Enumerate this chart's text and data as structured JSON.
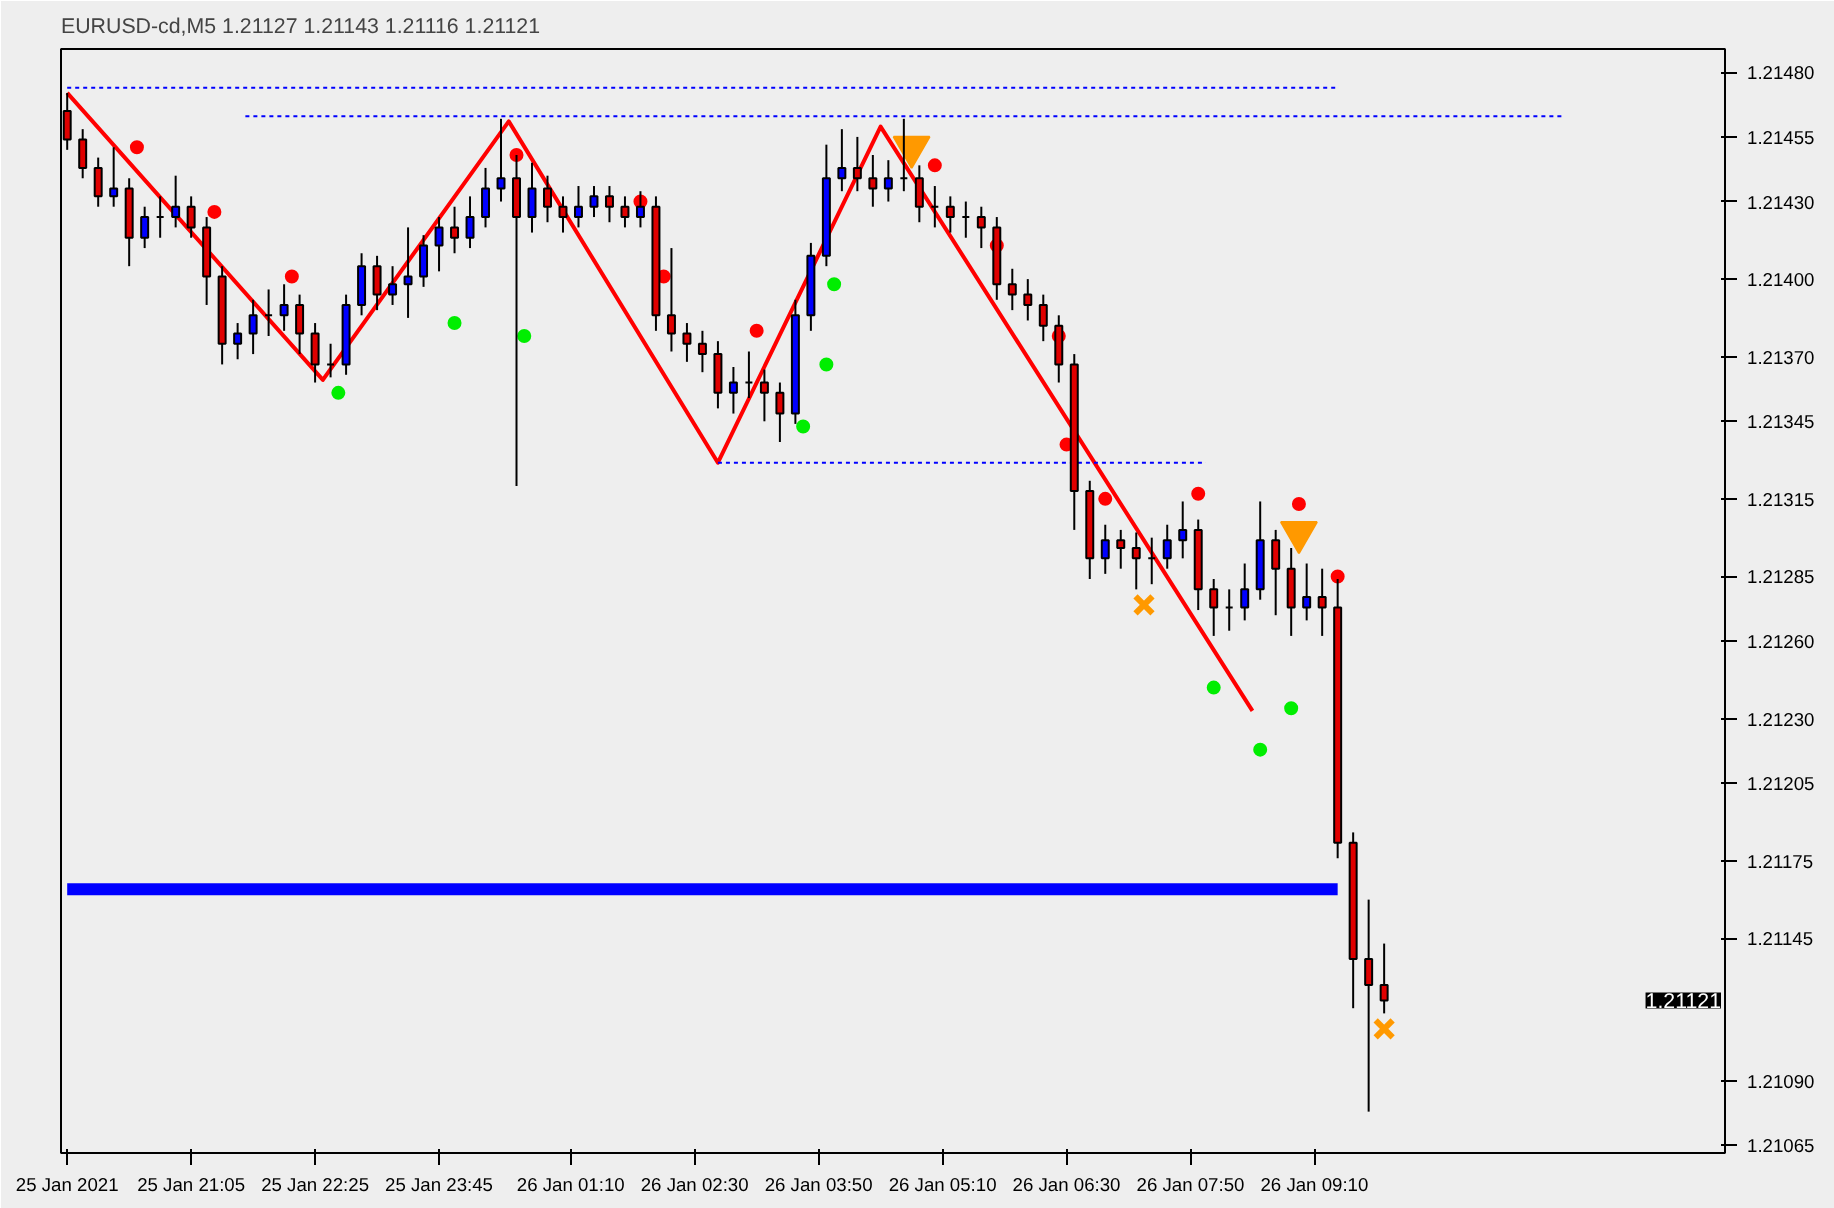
{
  "chart_data": {
    "type": "candlestick",
    "title": "EURUSD-cd,M5  1.21127 1.21143 1.21116 1.21121",
    "x": [
      "2021-01-25T19:45",
      "2021-01-25T19:55",
      "2021-01-25T20:05",
      "2021-01-25T20:15",
      "2021-01-25T20:25",
      "2021-01-25T20:35",
      "2021-01-25T20:45",
      "2021-01-25T20:55",
      "2021-01-25T21:05",
      "2021-01-25T21:15",
      "2021-01-25T21:25",
      "2021-01-25T21:35",
      "2021-01-25T21:45",
      "2021-01-25T21:55",
      "2021-01-25T22:05",
      "2021-01-25T22:15",
      "2021-01-25T22:25",
      "2021-01-25T22:35",
      "2021-01-25T22:45",
      "2021-01-25T22:55",
      "2021-01-25T23:05",
      "2021-01-25T23:15",
      "2021-01-25T23:25",
      "2021-01-25T23:35",
      "2021-01-25T23:45",
      "2021-01-25T23:55",
      "2021-01-26T00:05",
      "2021-01-26T00:15",
      "2021-01-26T00:25",
      "2021-01-26T00:35",
      "2021-01-26T00:45",
      "2021-01-26T00:55",
      "2021-01-26T01:05",
      "2021-01-26T01:15",
      "2021-01-26T01:25",
      "2021-01-26T01:35",
      "2021-01-26T01:45",
      "2021-01-26T01:55",
      "2021-01-26T02:05",
      "2021-01-26T02:15",
      "2021-01-26T02:25",
      "2021-01-26T02:35",
      "2021-01-26T02:45",
      "2021-01-26T02:55",
      "2021-01-26T03:05",
      "2021-01-26T03:15",
      "2021-01-26T03:25",
      "2021-01-26T03:35",
      "2021-01-26T03:45",
      "2021-01-26T03:55",
      "2021-01-26T04:05",
      "2021-01-26T04:15",
      "2021-01-26T04:25",
      "2021-01-26T04:35",
      "2021-01-26T04:45",
      "2021-01-26T04:55",
      "2021-01-26T05:05",
      "2021-01-26T05:15",
      "2021-01-26T05:25",
      "2021-01-26T05:35",
      "2021-01-26T05:45",
      "2021-01-26T05:55",
      "2021-01-26T06:05",
      "2021-01-26T06:15",
      "2021-01-26T06:25",
      "2021-01-26T06:35",
      "2021-01-26T06:45",
      "2021-01-26T06:55",
      "2021-01-26T07:05",
      "2021-01-26T07:15",
      "2021-01-26T07:25",
      "2021-01-26T07:35",
      "2021-01-26T07:45",
      "2021-01-26T07:55",
      "2021-01-26T08:05",
      "2021-01-26T08:15",
      "2021-01-26T08:25",
      "2021-01-26T08:35",
      "2021-01-26T08:45",
      "2021-01-26T08:55",
      "2021-01-26T09:05",
      "2021-01-26T09:15",
      "2021-01-26T09:25",
      "2021-01-26T09:35",
      "2021-01-26T09:45",
      "2021-01-26T09:55"
    ],
    "ohlc": [
      [
        1.21465,
        1.21472,
        1.2145,
        1.21454
      ],
      [
        1.21454,
        1.21458,
        1.21439,
        1.21443
      ],
      [
        1.21443,
        1.21447,
        1.21428,
        1.21432
      ],
      [
        1.21432,
        1.21451,
        1.21428,
        1.21435
      ],
      [
        1.21435,
        1.21439,
        1.21405,
        1.21416
      ],
      [
        1.21416,
        1.21428,
        1.21412,
        1.21424
      ],
      [
        1.21424,
        1.21432,
        1.21416,
        1.21424
      ],
      [
        1.21424,
        1.2144,
        1.2142,
        1.21428
      ],
      [
        1.21428,
        1.21432,
        1.21416,
        1.2142
      ],
      [
        1.2142,
        1.21424,
        1.2139,
        1.21401
      ],
      [
        1.21401,
        1.21405,
        1.21367,
        1.21375
      ],
      [
        1.21375,
        1.21383,
        1.21369,
        1.21379
      ],
      [
        1.21379,
        1.21392,
        1.21371,
        1.21386
      ],
      [
        1.21386,
        1.21396,
        1.21378,
        1.21386
      ],
      [
        1.21386,
        1.21398,
        1.2138,
        1.2139
      ],
      [
        1.2139,
        1.21394,
        1.21371,
        1.21379
      ],
      [
        1.21379,
        1.21383,
        1.2136,
        1.21367
      ],
      [
        1.21367,
        1.21375,
        1.21362,
        1.21367
      ],
      [
        1.21367,
        1.21394,
        1.21363,
        1.2139
      ],
      [
        1.2139,
        1.2141,
        1.21386,
        1.21405
      ],
      [
        1.21405,
        1.21409,
        1.21388,
        1.21394
      ],
      [
        1.21394,
        1.21405,
        1.2139,
        1.21398
      ],
      [
        1.21398,
        1.2142,
        1.21385,
        1.21401
      ],
      [
        1.21401,
        1.21417,
        1.21397,
        1.21413
      ],
      [
        1.21413,
        1.21424,
        1.21403,
        1.2142
      ],
      [
        1.2142,
        1.21428,
        1.2141,
        1.21416
      ],
      [
        1.21416,
        1.21432,
        1.21412,
        1.21424
      ],
      [
        1.21424,
        1.21443,
        1.2142,
        1.21435
      ],
      [
        1.21435,
        1.21462,
        1.2143,
        1.21439
      ],
      [
        1.21439,
        1.21448,
        1.2132,
        1.21424
      ],
      [
        1.21424,
        1.21445,
        1.21418,
        1.21435
      ],
      [
        1.21435,
        1.2144,
        1.21422,
        1.21428
      ],
      [
        1.21428,
        1.21432,
        1.21418,
        1.21424
      ],
      [
        1.21424,
        1.21436,
        1.2142,
        1.21428
      ],
      [
        1.21428,
        1.21436,
        1.21424,
        1.21432
      ],
      [
        1.21432,
        1.21436,
        1.21422,
        1.21428
      ],
      [
        1.21428,
        1.21432,
        1.2142,
        1.21424
      ],
      [
        1.21424,
        1.21434,
        1.2142,
        1.21428
      ],
      [
        1.21428,
        1.21432,
        1.2138,
        1.21386
      ],
      [
        1.21386,
        1.21412,
        1.21372,
        1.21379
      ],
      [
        1.21379,
        1.21383,
        1.21368,
        1.21375
      ],
      [
        1.21375,
        1.2138,
        1.21364,
        1.21371
      ],
      [
        1.21371,
        1.21376,
        1.2135,
        1.21356
      ],
      [
        1.21356,
        1.21366,
        1.21348,
        1.2136
      ],
      [
        1.2136,
        1.21372,
        1.21354,
        1.2136
      ],
      [
        1.2136,
        1.21365,
        1.21345,
        1.21356
      ],
      [
        1.21356,
        1.2136,
        1.21337,
        1.21348
      ],
      [
        1.21348,
        1.21392,
        1.21344,
        1.21386
      ],
      [
        1.21386,
        1.21414,
        1.2138,
        1.21409
      ],
      [
        1.21409,
        1.21452,
        1.21405,
        1.21439
      ],
      [
        1.21439,
        1.21458,
        1.21434,
        1.21443
      ],
      [
        1.21443,
        1.21455,
        1.21434,
        1.21439
      ],
      [
        1.21439,
        1.21448,
        1.21428,
        1.21435
      ],
      [
        1.21435,
        1.21446,
        1.2143,
        1.21439
      ],
      [
        1.21439,
        1.21462,
        1.21434,
        1.21439
      ],
      [
        1.21439,
        1.21444,
        1.21422,
        1.21428
      ],
      [
        1.21428,
        1.21436,
        1.2142,
        1.21428
      ],
      [
        1.21428,
        1.21432,
        1.21418,
        1.21424
      ],
      [
        1.21424,
        1.2143,
        1.21416,
        1.21424
      ],
      [
        1.21424,
        1.21428,
        1.21412,
        1.2142
      ],
      [
        1.2142,
        1.21424,
        1.21392,
        1.21398
      ],
      [
        1.21398,
        1.21404,
        1.21388,
        1.21394
      ],
      [
        1.21394,
        1.214,
        1.21384,
        1.2139
      ],
      [
        1.2139,
        1.21394,
        1.21376,
        1.21382
      ],
      [
        1.21382,
        1.21386,
        1.2136,
        1.21367
      ],
      [
        1.21367,
        1.21371,
        1.21303,
        1.21318
      ],
      [
        1.21318,
        1.21322,
        1.21284,
        1.21292
      ],
      [
        1.21292,
        1.21305,
        1.21286,
        1.21299
      ],
      [
        1.21299,
        1.21303,
        1.21288,
        1.21296
      ],
      [
        1.21296,
        1.21302,
        1.2128,
        1.21292
      ],
      [
        1.21292,
        1.213,
        1.21282,
        1.21292
      ],
      [
        1.21292,
        1.21305,
        1.21288,
        1.21299
      ],
      [
        1.21299,
        1.21314,
        1.21292,
        1.21303
      ],
      [
        1.21303,
        1.21307,
        1.21272,
        1.2128
      ],
      [
        1.2128,
        1.21284,
        1.21262,
        1.21273
      ],
      [
        1.21273,
        1.2128,
        1.21264,
        1.21273
      ],
      [
        1.21273,
        1.2129,
        1.21268,
        1.2128
      ],
      [
        1.2128,
        1.21314,
        1.21276,
        1.21299
      ],
      [
        1.21299,
        1.21303,
        1.2127,
        1.21288
      ],
      [
        1.21288,
        1.21296,
        1.21262,
        1.21273
      ],
      [
        1.21273,
        1.2129,
        1.21268,
        1.21277
      ],
      [
        1.21277,
        1.21288,
        1.21262,
        1.21273
      ],
      [
        1.21273,
        1.21284,
        1.21176,
        1.21182
      ],
      [
        1.21182,
        1.21186,
        1.21118,
        1.21137
      ],
      [
        1.21137,
        1.2116,
        1.21078,
        1.21127
      ],
      [
        1.21127,
        1.21143,
        1.21116,
        1.21121
      ]
    ],
    "colors": [
      "#e00000",
      "#e00000",
      "#e00000",
      "#0000ff",
      "#e00000",
      "#0000ff",
      "#000000",
      "#0000ff",
      "#e00000",
      "#e00000",
      "#e00000",
      "#0000ff",
      "#0000ff",
      "#000000",
      "#0000ff",
      "#e00000",
      "#e00000",
      "#000000",
      "#0000ff",
      "#0000ff",
      "#e00000",
      "#0000ff",
      "#0000ff",
      "#0000ff",
      "#0000ff",
      "#e00000",
      "#0000ff",
      "#0000ff",
      "#0000ff",
      "#e00000",
      "#0000ff",
      "#e00000",
      "#e00000",
      "#0000ff",
      "#0000ff",
      "#e00000",
      "#e00000",
      "#0000ff",
      "#e00000",
      "#e00000",
      "#e00000",
      "#e00000",
      "#e00000",
      "#0000ff",
      "#000000",
      "#e00000",
      "#e00000",
      "#0000ff",
      "#0000ff",
      "#0000ff",
      "#0000ff",
      "#e00000",
      "#e00000",
      "#0000ff",
      "#000000",
      "#e00000",
      "#000000",
      "#e00000",
      "#000000",
      "#e00000",
      "#e00000",
      "#e00000",
      "#e00000",
      "#e00000",
      "#e00000",
      "#e00000",
      "#e00000",
      "#0000ff",
      "#e00000",
      "#e00000",
      "#000000",
      "#0000ff",
      "#0000ff",
      "#e00000",
      "#e00000",
      "#000000",
      "#0000ff",
      "#0000ff",
      "#e00000",
      "#e00000",
      "#0000ff",
      "#e00000",
      "#e00000",
      "#e00000",
      "#e00000",
      "#e00000"
    ],
    "series": [
      {
        "type": "line",
        "color": "#ff0000",
        "x": [
          "2021-01-25T19:45",
          "2021-01-25T22:30",
          "2021-01-26T00:30",
          "2021-01-26T02:45",
          "2021-01-26T04:30",
          "2021-01-26T08:30"
        ],
        "values": [
          1.21472,
          1.21361,
          1.21461,
          1.21329,
          1.21459,
          1.21233
        ]
      },
      {
        "type": "line",
        "color": "#0000ff",
        "line_style": "dotted",
        "x": [
          "2021-01-25T19:45",
          "2021-01-26T09:25"
        ],
        "values": [
          1.21474,
          1.21474
        ]
      },
      {
        "type": "line",
        "color": "#0000ff",
        "line_style": "dotted",
        "x": [
          "2021-01-25T21:40",
          "2021-01-26T11:50"
        ],
        "values": [
          1.21463,
          1.21463
        ]
      },
      {
        "type": "line",
        "color": "#0000ff",
        "line_style": "dotted",
        "x": [
          "2021-01-26T02:45",
          "2021-01-26T08:00"
        ],
        "values": [
          1.21329,
          1.21329
        ]
      },
      {
        "type": "line",
        "color": "#0000ff",
        "line_style": "solid",
        "x": [
          "2021-01-25T19:45",
          "2021-01-26T09:25"
        ],
        "values": [
          1.21164,
          1.21164
        ]
      },
      {
        "type": "scatter",
        "color": "#ff0000",
        "marker": "circle",
        "x": [
          "2021-01-25T20:30",
          "2021-01-25T21:20",
          "2021-01-25T22:10",
          "2021-01-26T00:35",
          "2021-01-26T02:10",
          "2021-01-26T03:10",
          "2021-01-26T05:05",
          "2021-01-26T05:45",
          "2021-01-26T06:30",
          "2021-01-26T06:55",
          "2021-01-26T07:55",
          "2021-01-26T09:00",
          "2021-01-26T09:25"
        ],
        "values": [
          1.21451,
          1.21426,
          1.21401,
          1.21448,
          1.21401,
          1.2138,
          1.21444,
          1.21413,
          1.21336,
          1.21315,
          1.21317,
          1.21313,
          1.21285
        ]
      },
      {
        "type": "scatter",
        "color": "#00ee00",
        "marker": "circle",
        "x": [
          "2021-01-25T22:40",
          "2021-01-25T23:55",
          "2021-01-26T00:40",
          "2021-01-26T03:40",
          "2021-01-26T03:55",
          "2021-01-26T04:00",
          "2021-01-26T08:05",
          "2021-01-26T08:35",
          "2021-01-26T08:55"
        ],
        "values": [
          1.21356,
          1.21383,
          1.21378,
          1.21343,
          1.21367,
          1.21398,
          1.21242,
          1.21218,
          1.21234
        ]
      },
      {
        "type": "scatter",
        "color": "#ff0000",
        "marker": "circle",
        "x": [
          "2021-01-26T01:55",
          "2021-01-26T06:25"
        ],
        "values": [
          1.2143,
          1.21378
        ]
      },
      {
        "type": "scatter",
        "color": "#ff9900",
        "marker": "triangle",
        "x": [
          "2021-01-26T04:50",
          "2021-01-26T09:00"
        ],
        "values": [
          1.21451,
          1.21302
        ]
      },
      {
        "type": "scatter",
        "color": "#ff9900",
        "marker": "cross",
        "x": [
          "2021-01-26T07:20",
          "2021-01-26T09:55"
        ],
        "values": [
          1.21274,
          1.2111
        ]
      }
    ],
    "annotations": [
      "1.21121"
    ],
    "xlim": [
      "2021-01-25T19:41",
      "2021-01-26T13:35"
    ],
    "xticks": [
      {
        "value": "2021-01-25T19:45",
        "label": "25 Jan 2021"
      },
      {
        "value": "2021-01-25T21:05",
        "label": "25 Jan 21:05"
      },
      {
        "value": "2021-01-25T22:25",
        "label": "25 Jan 22:25"
      },
      {
        "value": "2021-01-25T23:45",
        "label": "25 Jan 23:45"
      },
      {
        "value": "2021-01-26T01:10",
        "label": "26 Jan 01:10"
      },
      {
        "value": "2021-01-26T02:30",
        "label": "26 Jan 02:30"
      },
      {
        "value": "2021-01-26T03:50",
        "label": "26 Jan 03:50"
      },
      {
        "value": "2021-01-26T05:10",
        "label": "26 Jan 05:10"
      },
      {
        "value": "2021-01-26T06:30",
        "label": "26 Jan 06:30"
      },
      {
        "value": "2021-01-26T07:50",
        "label": "26 Jan 07:50"
      },
      {
        "value": "2021-01-26T09:10",
        "label": "26 Jan 09:10"
      }
    ],
    "ylim": [
      1.21062,
      1.21489
    ],
    "yticks": [
      1.21065,
      {
        "value": 1.2109,
        "label": "1.21090"
      },
      1.21145,
      1.21175,
      1.21205,
      {
        "value": 1.2123,
        "label": "1.21230"
      },
      {
        "value": 1.2126,
        "label": "1.21260"
      },
      1.21285,
      1.21315,
      1.21345,
      {
        "value": 1.2137,
        "label": "1.21370"
      },
      {
        "value": 1.214,
        "label": "1.21400"
      },
      {
        "value": 1.2143,
        "label": "1.21430"
      },
      1.21455,
      {
        "value": 1.2148,
        "label": "1.21480"
      }
    ],
    "grid": false
  }
}
